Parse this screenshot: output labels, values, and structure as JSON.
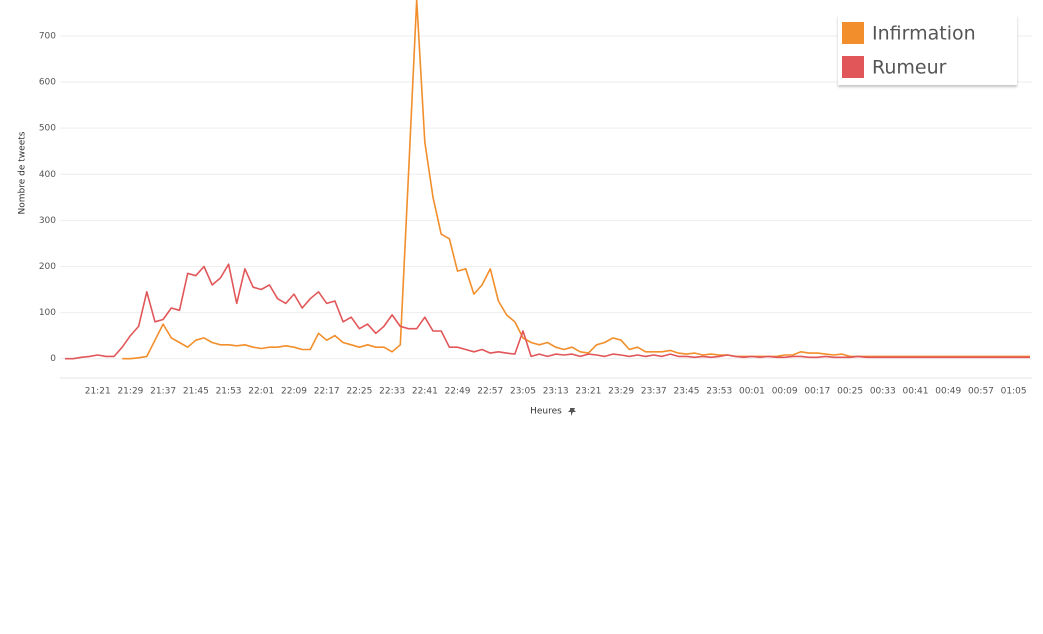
{
  "chart_data": {
    "type": "line",
    "y_label": "Nombre de tweets",
    "x_label": "Heures",
    "categories": [
      null,
      null,
      null,
      null,
      "21:21",
      null,
      null,
      null,
      "21:29",
      null,
      null,
      null,
      "21:37",
      null,
      null,
      null,
      "21:45",
      null,
      null,
      null,
      "21:53",
      null,
      null,
      null,
      "22:01",
      null,
      null,
      null,
      "22:09",
      null,
      null,
      null,
      "22:17",
      null,
      null,
      null,
      "22:25",
      null,
      null,
      null,
      "22:33",
      null,
      null,
      null,
      "22:41",
      null,
      null,
      null,
      "22:49",
      null,
      null,
      null,
      "22:57",
      null,
      null,
      null,
      "23:05",
      null,
      null,
      null,
      "23:13",
      null,
      null,
      null,
      "23:21",
      null,
      null,
      null,
      "23:29",
      null,
      null,
      null,
      "23:37",
      null,
      null,
      null,
      "23:45",
      null,
      null,
      null,
      "23:53",
      null,
      null,
      null,
      "00:01",
      null,
      null,
      null,
      "00:09",
      null,
      null,
      null,
      "00:17",
      null,
      null,
      null,
      "00:25",
      null,
      null,
      null,
      "00:33",
      null,
      null,
      null,
      "00:41",
      null,
      null,
      null,
      "00:49",
      null,
      null,
      null,
      "00:57",
      null,
      null,
      null,
      "01:05",
      null,
      null
    ],
    "series": [
      {
        "name": "Infirmation",
        "color": "#f28e2b",
        "values": [
          null,
          null,
          null,
          null,
          null,
          null,
          null,
          0,
          0,
          2,
          5,
          40,
          75,
          45,
          35,
          25,
          40,
          45,
          35,
          30,
          30,
          28,
          30,
          25,
          22,
          25,
          25,
          28,
          25,
          20,
          20,
          55,
          40,
          50,
          35,
          30,
          25,
          30,
          25,
          25,
          15,
          30,
          400,
          778,
          470,
          350,
          270,
          260,
          190,
          195,
          140,
          160,
          195,
          125,
          95,
          80,
          45,
          35,
          30,
          35,
          25,
          20,
          25,
          15,
          12,
          30,
          35,
          45,
          40,
          20,
          25,
          15,
          15,
          15,
          18,
          12,
          10,
          12,
          8,
          10,
          8,
          8,
          5,
          5,
          5,
          5,
          5,
          5,
          8,
          8,
          15,
          12,
          12,
          10,
          8,
          10,
          5,
          5,
          5,
          5,
          5,
          5,
          5,
          5,
          5,
          5,
          5,
          5,
          5,
          5,
          5,
          5,
          5,
          5,
          5,
          5,
          5,
          5,
          5
        ]
      },
      {
        "name": "Rumeur",
        "color": "#e15759",
        "values": [
          0,
          0,
          3,
          5,
          8,
          5,
          5,
          25,
          50,
          70,
          145,
          80,
          85,
          110,
          105,
          185,
          180,
          200,
          160,
          175,
          205,
          120,
          195,
          155,
          150,
          160,
          130,
          120,
          140,
          110,
          130,
          145,
          120,
          125,
          80,
          90,
          65,
          75,
          55,
          70,
          95,
          70,
          65,
          65,
          90,
          60,
          60,
          25,
          25,
          20,
          15,
          20,
          12,
          15,
          12,
          10,
          60,
          5,
          10,
          5,
          10,
          8,
          10,
          5,
          10,
          8,
          5,
          10,
          8,
          5,
          8,
          5,
          8,
          5,
          10,
          5,
          5,
          3,
          5,
          3,
          5,
          8,
          5,
          3,
          5,
          3,
          5,
          3,
          3,
          5,
          5,
          3,
          3,
          5,
          3,
          3,
          3,
          5,
          3,
          3,
          3,
          3,
          3,
          3,
          3,
          3,
          3,
          3,
          3,
          3,
          3,
          3,
          3,
          3,
          3,
          3,
          3,
          3,
          3
        ]
      }
    ],
    "ylim": [
      -43,
      778
    ],
    "yticks": [
      0,
      100,
      200,
      300,
      400,
      500,
      600,
      700
    ],
    "grid": true
  }
}
